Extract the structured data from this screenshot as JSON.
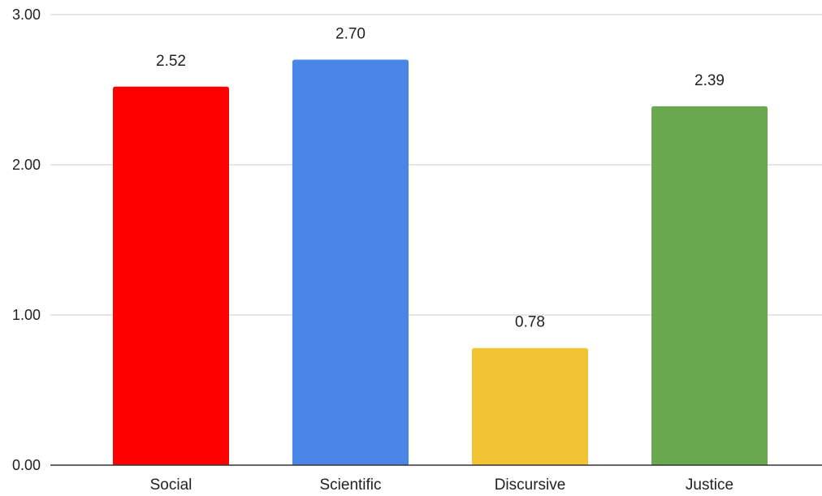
{
  "chart_data": {
    "type": "bar",
    "title": "",
    "xlabel": "",
    "ylabel": "",
    "categories": [
      "Social",
      "Scientific",
      "Discursive",
      "Justice"
    ],
    "values": [
      2.52,
      2.7,
      0.78,
      2.39
    ],
    "data_labels": [
      "2.52",
      "2.70",
      "0.78",
      "2.39"
    ],
    "bar_colors": [
      "#ff0000",
      "#4a86e8",
      "#f1c232",
      "#6aa84f"
    ],
    "ylim": [
      0,
      3
    ],
    "yticks": [
      0,
      1,
      2,
      3
    ],
    "ytick_labels": [
      "0.00",
      "1.00",
      "2.00",
      "3.00"
    ],
    "grid": true,
    "legend": "none",
    "gridline_color": "#cccccc",
    "baseline_color": "#333333"
  }
}
